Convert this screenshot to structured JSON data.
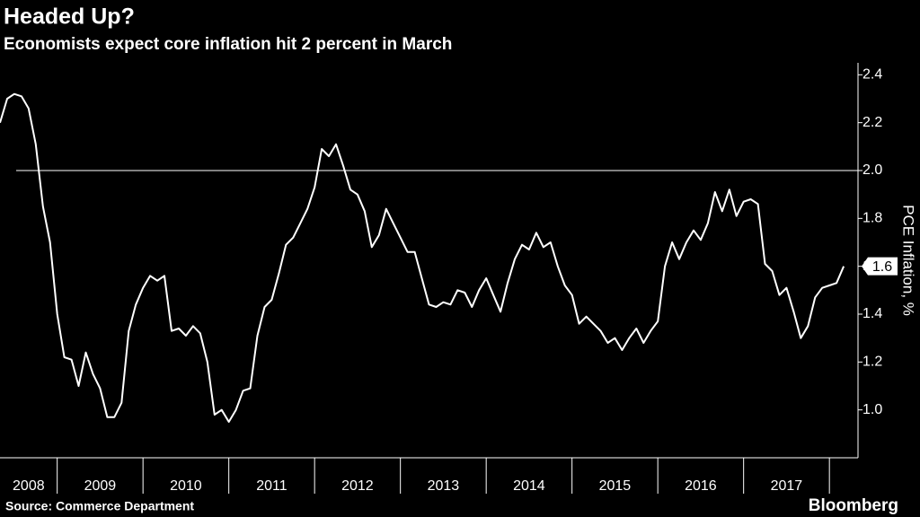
{
  "chart_data": {
    "type": "line",
    "title": "Headed Up?",
    "subtitle": "Economists expect core inflation hit 2 percent in March",
    "y_axis_label": "PCE Inflation, %",
    "source": "Source: Commerce Department",
    "brand": "Bloomberg",
    "x": [
      "2008-05",
      "2008-06",
      "2008-07",
      "2008-08",
      "2008-09",
      "2008-10",
      "2008-11",
      "2008-12",
      "2009-01",
      "2009-02",
      "2009-03",
      "2009-04",
      "2009-05",
      "2009-06",
      "2009-07",
      "2009-08",
      "2009-09",
      "2009-10",
      "2009-11",
      "2009-12",
      "2010-01",
      "2010-02",
      "2010-03",
      "2010-04",
      "2010-05",
      "2010-06",
      "2010-07",
      "2010-08",
      "2010-09",
      "2010-10",
      "2010-11",
      "2010-12",
      "2011-01",
      "2011-02",
      "2011-03",
      "2011-04",
      "2011-05",
      "2011-06",
      "2011-07",
      "2011-08",
      "2011-09",
      "2011-10",
      "2011-11",
      "2011-12",
      "2012-01",
      "2012-02",
      "2012-03",
      "2012-04",
      "2012-05",
      "2012-06",
      "2012-07",
      "2012-08",
      "2012-09",
      "2012-10",
      "2012-11",
      "2012-12",
      "2013-01",
      "2013-02",
      "2013-03",
      "2013-04",
      "2013-05",
      "2013-06",
      "2013-07",
      "2013-08",
      "2013-09",
      "2013-10",
      "2013-11",
      "2013-12",
      "2014-01",
      "2014-02",
      "2014-03",
      "2014-04",
      "2014-05",
      "2014-06",
      "2014-07",
      "2014-08",
      "2014-09",
      "2014-10",
      "2014-11",
      "2014-12",
      "2015-01",
      "2015-02",
      "2015-03",
      "2015-04",
      "2015-05",
      "2015-06",
      "2015-07",
      "2015-08",
      "2015-09",
      "2015-10",
      "2015-11",
      "2015-12",
      "2016-01",
      "2016-02",
      "2016-03",
      "2016-04",
      "2016-05",
      "2016-06",
      "2016-07",
      "2016-08",
      "2016-09",
      "2016-10",
      "2016-11",
      "2016-12",
      "2017-01",
      "2017-02",
      "2017-03",
      "2017-04",
      "2017-05",
      "2017-06",
      "2017-07",
      "2017-08",
      "2017-09",
      "2017-10",
      "2017-11",
      "2017-12",
      "2018-01",
      "2018-02",
      "2018-03"
    ],
    "series": [
      {
        "name": "PCE Inflation",
        "color": "#ffffff",
        "values": [
          2.2,
          2.3,
          2.32,
          2.31,
          2.26,
          2.11,
          1.85,
          1.7,
          1.4,
          1.22,
          1.21,
          1.1,
          1.24,
          1.15,
          1.09,
          0.97,
          0.97,
          1.03,
          1.33,
          1.44,
          1.51,
          1.56,
          1.54,
          1.56,
          1.33,
          1.34,
          1.31,
          1.35,
          1.32,
          1.2,
          0.98,
          1.0,
          0.95,
          1.0,
          1.08,
          1.09,
          1.31,
          1.43,
          1.46,
          1.57,
          1.69,
          1.72,
          1.78,
          1.84,
          1.93,
          2.09,
          2.06,
          2.11,
          2.02,
          1.92,
          1.9,
          1.83,
          1.68,
          1.73,
          1.84,
          1.78,
          1.72,
          1.66,
          1.66,
          1.55,
          1.44,
          1.43,
          1.45,
          1.44,
          1.5,
          1.49,
          1.43,
          1.5,
          1.55,
          1.48,
          1.41,
          1.53,
          1.63,
          1.69,
          1.67,
          1.74,
          1.68,
          1.7,
          1.6,
          1.52,
          1.48,
          1.36,
          1.39,
          1.36,
          1.33,
          1.28,
          1.3,
          1.25,
          1.3,
          1.34,
          1.28,
          1.33,
          1.37,
          1.6,
          1.7,
          1.63,
          1.7,
          1.75,
          1.71,
          1.78,
          1.91,
          1.83,
          1.92,
          1.81,
          1.87,
          1.88,
          1.86,
          1.61,
          1.58,
          1.48,
          1.51,
          1.41,
          1.3,
          1.35,
          1.47,
          1.51,
          1.52,
          1.53,
          1.6
        ]
      }
    ],
    "last_value_label": "1.6",
    "xlim": [
      "2008-05",
      "2018-05"
    ],
    "xticks": [
      "2009-01",
      "2010-01",
      "2011-01",
      "2012-01",
      "2013-01",
      "2014-01",
      "2015-01",
      "2016-01",
      "2017-01",
      "2018-01"
    ],
    "year_labels": [
      "2008",
      "2009",
      "2010",
      "2011",
      "2012",
      "2013",
      "2014",
      "2015",
      "2016",
      "2017"
    ],
    "ylim": [
      0.8,
      2.45
    ],
    "yticks": [
      {
        "value": 1,
        "label": "1.0"
      },
      {
        "value": 1.2,
        "label": "1.2"
      },
      {
        "value": 1.4,
        "label": "1.4"
      },
      {
        "value": 1.6,
        "label": "1.6"
      },
      {
        "value": 1.8,
        "label": "1.8"
      },
      {
        "value": 2,
        "label": "2.0"
      },
      {
        "value": 2.2,
        "label": "2.2"
      },
      {
        "value": 2.4,
        "label": "2.4"
      }
    ],
    "reference_line": 2
  }
}
